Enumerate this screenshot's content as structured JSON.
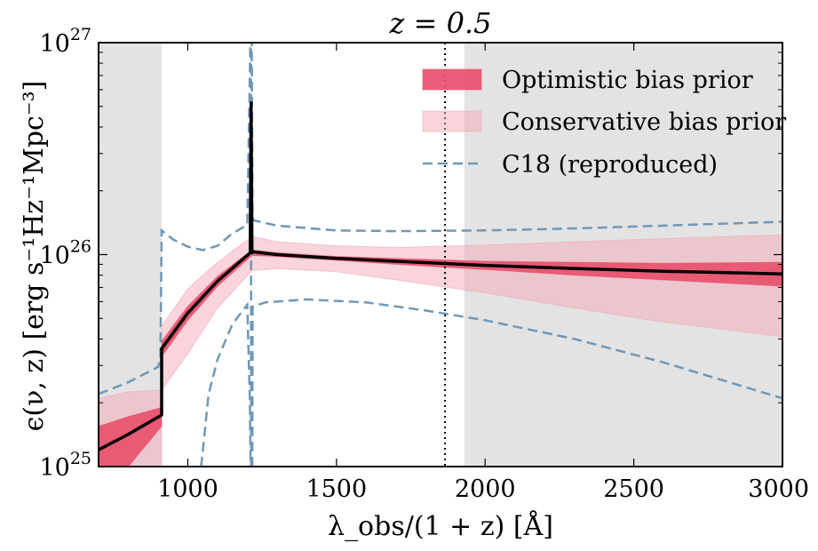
{
  "chart_data": {
    "type": "line",
    "title": "z = 0.5",
    "xlabel": "λ_obs/(1 + z) [Å]",
    "ylabel": "ϵ(ν, z) [erg s⁻¹Hz⁻¹Mpc⁻³]",
    "xlim": [
      700,
      3000
    ],
    "ylim": [
      1e+25,
      1e+27
    ],
    "yscale": "log",
    "x_ticks": [
      1000,
      1500,
      2000,
      2500,
      3000
    ],
    "y_ticks": [
      1e+25,
      1e+26,
      1e+27
    ],
    "y_tick_labels": [
      {
        "base": "10",
        "exp": "25"
      },
      {
        "base": "10",
        "exp": "26"
      },
      {
        "base": "10",
        "exp": "27"
      }
    ],
    "x_tick_labels": [
      "1000",
      "1500",
      "2000",
      "2500",
      "3000"
    ],
    "legend_position": "top-right",
    "legend": [
      {
        "label": "Optimistic bias prior",
        "kind": "band",
        "color": "#e8506e"
      },
      {
        "label": "Conservative bias prior",
        "kind": "band",
        "color": "#f3a9b8"
      },
      {
        "label": "C18 (reproduced)",
        "kind": "dashed",
        "color": "#6f98b8"
      }
    ],
    "shaded_regions": [
      {
        "x": [
          700,
          912
        ]
      },
      {
        "x": [
          1930,
          3000
        ]
      }
    ],
    "vertical_line_x": 1865,
    "series": [
      {
        "kind": "median",
        "color": "#000000",
        "x": [
          700,
          800,
          912,
          912,
          1000,
          1100,
          1210,
          1213,
          1216,
          1219,
          1222,
          1300,
          1500,
          1700,
          2000,
          2300,
          2600,
          3000
        ],
        "values": [
          1.2e+25,
          1.42e+25,
          1.75e+25,
          3.6e+25,
          5.3e+25,
          7.5e+25,
          1.02e+26,
          5.2e+26,
          1.02e+26,
          1.03e+26,
          1.03e+26,
          1e+26,
          9.6e+25,
          9.3e+25,
          8.9e+25,
          8.6e+25,
          8.35e+25,
          8.1e+25
        ]
      },
      {
        "kind": "optimistic_band",
        "color": "#e8506e",
        "x": [
          700,
          800,
          912,
          912,
          1000,
          1100,
          1216,
          1300,
          1500,
          1700,
          2000,
          2300,
          2600,
          3000
        ],
        "lower": [
          1e+25,
          1e+25,
          1.55e+25,
          3.3e+25,
          4.9e+25,
          7.1e+25,
          9.9e+25,
          9.8e+25,
          9.4e+25,
          9e+25,
          8.5e+25,
          8e+25,
          7.6e+25,
          7.1e+25
        ],
        "upper": [
          1.55e+25,
          1.72e+25,
          1.9e+25,
          3.9e+25,
          5.7e+25,
          7.9e+25,
          1.05e+26,
          1.02e+26,
          9.8e+25,
          9.6e+25,
          9.3e+25,
          9.2e+25,
          9.1e+25,
          9.2e+25
        ]
      },
      {
        "kind": "conservative_band",
        "color": "#f3a9b8",
        "x": [
          700,
          800,
          912,
          912,
          1000,
          1100,
          1216,
          1300,
          1500,
          1700,
          2000,
          2300,
          2600,
          3000
        ],
        "lower": [
          1e+25,
          1e+25,
          1e+25,
          2.3e+25,
          3.4e+25,
          5.6e+25,
          8.4e+25,
          8.6e+25,
          8.3e+25,
          7.6e+25,
          6.6e+25,
          5.6e+25,
          4.8e+25,
          4.1e+25
        ],
        "upper": [
          2.1e+25,
          2.25e+25,
          2.3e+25,
          4.6e+25,
          6.9e+25,
          9.2e+25,
          1.22e+26,
          1.15e+26,
          1.1e+26,
          1.08e+26,
          1.11e+26,
          1.15e+26,
          1.19e+26,
          1.24e+26
        ]
      },
      {
        "kind": "c18_upper",
        "color": "#6f98b8",
        "x": [
          700,
          800,
          900,
          908,
          912,
          950,
          1000,
          1050,
          1100,
          1150,
          1200,
          1214,
          1218,
          1222,
          1300,
          1500,
          1700,
          2000,
          2300,
          2600,
          3000
        ],
        "values": [
          2.2e+25,
          2.5e+25,
          2.95e+25,
          3.2e+25,
          1.3e+26,
          1.18e+26,
          1.09e+26,
          1.05e+26,
          1.1e+26,
          1.26e+26,
          1.38e+26,
          2e+27,
          1.5e+26,
          1.45e+26,
          1.37e+26,
          1.3e+26,
          1.29e+26,
          1.3e+26,
          1.33e+26,
          1.37e+26,
          1.43e+26
        ]
      },
      {
        "kind": "c18_lower",
        "color": "#6f98b8",
        "x": [
          1045,
          1070,
          1100,
          1150,
          1200,
          1209,
          1211
        ],
        "values": [
          1e+25,
          2.2e+25,
          3.2e+25,
          4.7e+25,
          5.8e+25,
          2e+25,
          1e+25
        ]
      },
      {
        "kind": "c18_lower_right",
        "color": "#6f98b8",
        "x": [
          1217,
          1218,
          1220,
          1260,
          1400,
          1600,
          1800,
          2000,
          2300,
          2600,
          3000
        ],
        "values": [
          1e+25,
          5.6e+25,
          5.7e+25,
          5.95e+25,
          6.15e+25,
          5.95e+25,
          5.45e+25,
          4.9e+25,
          4e+25,
          3.1e+25,
          2.1e+25
        ]
      },
      {
        "kind": "c18_spike",
        "color": "#6f98b8",
        "x": [
          1213,
          1213
        ],
        "values": [
          1e+25,
          1e+27
        ]
      }
    ]
  }
}
